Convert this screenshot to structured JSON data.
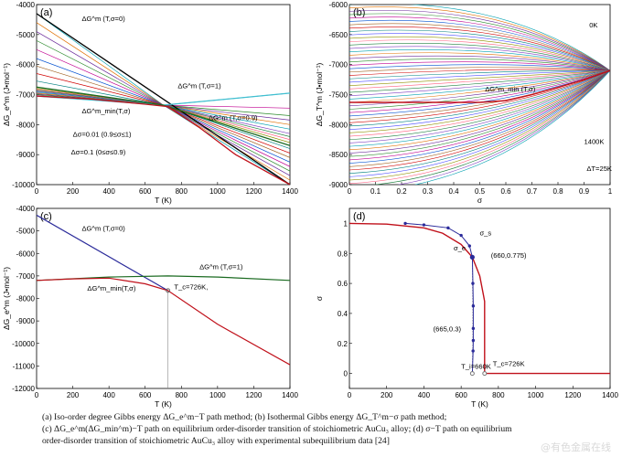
{
  "chart_data": [
    {
      "id": "a",
      "type": "line",
      "panel_label": "(a)",
      "xlabel": "T  (K)",
      "ylabel": "ΔG_e^m (J•mol⁻¹)",
      "xlim": [
        0,
        1400
      ],
      "ylim": [
        -10000,
        -4000
      ],
      "xticks": [
        0,
        200,
        400,
        600,
        800,
        1000,
        1200,
        1400
      ],
      "yticks": [
        -10000,
        -9000,
        -8000,
        -7000,
        -6000,
        -5000,
        -4000
      ],
      "grid": false,
      "series_family": {
        "description_sigma": [
          0,
          0.1,
          0.2,
          0.3,
          0.4,
          0.5,
          0.6,
          0.7,
          0.8,
          0.9,
          0.91,
          0.92,
          0.93,
          0.94,
          0.95,
          0.96,
          0.97,
          0.98,
          0.99,
          1.0
        ],
        "crossing_point": [
          700,
          -7350
        ],
        "start_at_T0": [
          -4300,
          -4600,
          -4900,
          -5200,
          -5500,
          -5800,
          -6050,
          -6300,
          -6550,
          -6750,
          -6800,
          -6830,
          -6860,
          -6890,
          -6920,
          -6950,
          -6975,
          -7000,
          -7030,
          -7050
        ],
        "end_at_T1400": [
          -10000,
          -9850,
          -9700,
          -9550,
          -9400,
          -9250,
          -9100,
          -8950,
          -8800,
          -8700,
          -8600,
          -8500,
          -8400,
          -8300,
          -8150,
          -8000,
          -7850,
          -7700,
          -7450,
          -6950
        ]
      },
      "series": [
        {
          "name": "ΔG^m (T,σ=0)",
          "x": [
            0,
            1400
          ],
          "y": [
            -4300,
            -10000
          ],
          "color": "#000000"
        },
        {
          "name": "ΔG^m (T,σ=1)",
          "x": [
            0,
            700,
            1400
          ],
          "y": [
            -7050,
            -7350,
            -6950
          ],
          "color": "#40c0d0"
        },
        {
          "name": "ΔG^m (T,σ=0.9)",
          "x": [
            0,
            700,
            1400
          ],
          "y": [
            -6750,
            -7350,
            -8700
          ],
          "color": "#1a6a20"
        },
        {
          "name": "ΔG^m_min (T,σ)",
          "x": [
            0,
            300,
            600,
            726,
            900,
            1100,
            1400
          ],
          "y": [
            -7050,
            -7150,
            -7320,
            -7400,
            -8100,
            -9000,
            -10000
          ],
          "color": "#c0101a"
        }
      ],
      "annotations": [
        {
          "text": "ΔG^m (T,σ=0)",
          "x": 250,
          "y": -4550
        },
        {
          "text": "ΔG^m (T,σ=1)",
          "x": 780,
          "y": -6780
        },
        {
          "text": "ΔG^m_min(T,σ)",
          "x": 250,
          "y": -7620
        },
        {
          "text": "ΔG^m (T,σ=0.9)",
          "x": 950,
          "y": -7850
        },
        {
          "text": "Δσ=0.01 (0.9≤σ≤1)",
          "x": 200,
          "y": -8400
        },
        {
          "text": "Δσ=0.1 (0≤σ≤0.9)",
          "x": 190,
          "y": -9000
        }
      ]
    },
    {
      "id": "b",
      "type": "line",
      "panel_label": "(b)",
      "xlabel": "σ",
      "ylabel": "ΔG_T^m (J•mol⁻¹)",
      "xlim": [
        0,
        1
      ],
      "ylim": [
        -9000,
        -6000
      ],
      "xticks": [
        0,
        0.1,
        0.2,
        0.3,
        0.4,
        0.5,
        0.6,
        0.7,
        0.8,
        0.9,
        1
      ],
      "yticks": [
        -9000,
        -8500,
        -8000,
        -7500,
        -7000,
        -6500,
        -6000
      ],
      "grid": false,
      "series_family": {
        "temperatures_K": [
          0,
          25,
          50,
          75,
          100,
          125,
          150,
          175,
          200,
          225,
          250,
          275,
          300,
          325,
          350,
          375,
          400,
          425,
          450,
          475,
          500,
          525,
          550,
          575,
          600,
          625,
          650,
          675,
          700,
          725,
          750,
          775,
          800,
          825,
          850,
          875,
          900,
          925,
          950,
          975,
          1000,
          1025,
          1050,
          1075,
          1100,
          1125,
          1150,
          1175,
          1200,
          1225,
          1250,
          1275,
          1300,
          1325,
          1350,
          1375,
          1400
        ],
        "converge_at": [
          1.0,
          -7100
        ]
      },
      "series": [
        {
          "name": "ΔG^m_min (T,σ)",
          "x": [
            0,
            0.1,
            0.2,
            0.3,
            0.4,
            0.5,
            0.6,
            0.7,
            0.8,
            0.9,
            1.0
          ],
          "y": [
            -7630,
            -7630,
            -7630,
            -7630,
            -7630,
            -7630,
            -7600,
            -7500,
            -7380,
            -7250,
            -7100
          ],
          "color": "#c0101a"
        }
      ],
      "annotations": [
        {
          "text": "0K",
          "x": 0.92,
          "y": -6380
        },
        {
          "text": "ΔG^m_min (T,σ)",
          "x": 0.52,
          "y": -7450
        },
        {
          "text": "1400K",
          "x": 0.9,
          "y": -8320
        },
        {
          "text": "ΔT=25K",
          "x": 0.91,
          "y": -8770
        }
      ]
    },
    {
      "id": "c",
      "type": "line",
      "panel_label": "(c)",
      "xlabel": "T  (K)",
      "ylabel": "ΔG_e^m (J•mol⁻¹)",
      "xlim": [
        0,
        1400
      ],
      "ylim": [
        -12000,
        -4000
      ],
      "xticks": [
        0,
        200,
        400,
        600,
        800,
        1000,
        1200,
        1400
      ],
      "yticks": [
        -12000,
        -11000,
        -10000,
        -9000,
        -8000,
        -7000,
        -6000,
        -5000,
        -4000
      ],
      "grid": false,
      "series": [
        {
          "name": "ΔG^m (T,σ=0)",
          "x": [
            0,
            726
          ],
          "y": [
            -4300,
            -7650
          ],
          "color": "#2a2a9a"
        },
        {
          "name": "ΔG^m (T,σ=1)",
          "x": [
            0,
            400,
            726,
            1000,
            1400
          ],
          "y": [
            -7200,
            -7050,
            -7000,
            -7050,
            -7200
          ],
          "color": "#1a6a20"
        },
        {
          "name": "ΔG^m_min(T,σ)",
          "x": [
            0,
            200,
            400,
            600,
            726,
            1000,
            1400
          ],
          "y": [
            -7200,
            -7130,
            -7100,
            -7350,
            -7650,
            -9150,
            -10950
          ],
          "color": "#c0101a"
        }
      ],
      "annotations": [
        {
          "text": "ΔG^m (T,σ=0)",
          "x": 250,
          "y": -5000
        },
        {
          "text": "ΔG^m (T,σ=1)",
          "x": 900,
          "y": -6700
        },
        {
          "text": "ΔG^m_min(T,σ)",
          "x": 280,
          "y": -7650
        },
        {
          "text": "T_c=726K,",
          "x": 760,
          "y": -7600
        }
      ],
      "vertical_line": {
        "x": 726,
        "y_from": -12000,
        "y_to": -7650
      }
    },
    {
      "id": "d",
      "type": "line",
      "panel_label": "(d)",
      "xlabel": "T  (K)",
      "ylabel": "σ",
      "xlim": [
        0,
        1400
      ],
      "ylim": [
        -0.1,
        1.1
      ],
      "xticks": [
        0,
        200,
        400,
        600,
        800,
        1000,
        1200,
        1400
      ],
      "yticks": [
        0,
        0.2,
        0.4,
        0.6,
        0.8,
        1
      ],
      "grid": false,
      "series": [
        {
          "name": "σ_e",
          "x": [
            0,
            200,
            400,
            500,
            600,
            660,
            700,
            720,
            726,
            726,
            1400
          ],
          "y": [
            1.0,
            0.995,
            0.97,
            0.935,
            0.86,
            0.775,
            0.65,
            0.52,
            0.48,
            0.0,
            0.0
          ],
          "color": "#c0101a"
        },
        {
          "name": "σ_s",
          "x": [
            300,
            400,
            530,
            600,
            645,
            660,
            663,
            665,
            665,
            665,
            664,
            660
          ],
          "y": [
            1.0,
            0.99,
            0.97,
            0.92,
            0.85,
            0.775,
            0.6,
            0.45,
            0.3,
            0.22,
            0.15,
            0.0
          ],
          "color": "#2a2a9a"
        }
      ],
      "annotations": [
        {
          "text": "σ_s",
          "x": 700,
          "y": 0.92
        },
        {
          "text": "σ_e",
          "x": 560,
          "y": 0.82
        },
        {
          "text": "(660,0.775)",
          "x": 760,
          "y": 0.77
        },
        {
          "text": "(665,0.3)",
          "x": 450,
          "y": 0.28
        },
        {
          "text": "T_i=660K",
          "x": 600,
          "y": 0.03
        },
        {
          "text": "T_c=726K",
          "x": 770,
          "y": 0.05
        }
      ]
    }
  ],
  "caption": {
    "line1": "(a)   Iso-order  degree  Gibbs  energy  ΔG_e^m−T  path  method;   (b)  Isothermal  Gibbs  energy  ΔG_T^m−σ  path  method;",
    "line2": "(c)  ΔG_e^m(ΔG_min^m)−T path on equilibrium order-disorder transition of stoichiometric AuCu₃ alloy; (d) σ−T path on equilibrium",
    "line3": "order-disorder transition of stoichiometric AuCu₃ alloy with experimental subequilibrium data [24]"
  },
  "watermark": "@有色金属在线"
}
